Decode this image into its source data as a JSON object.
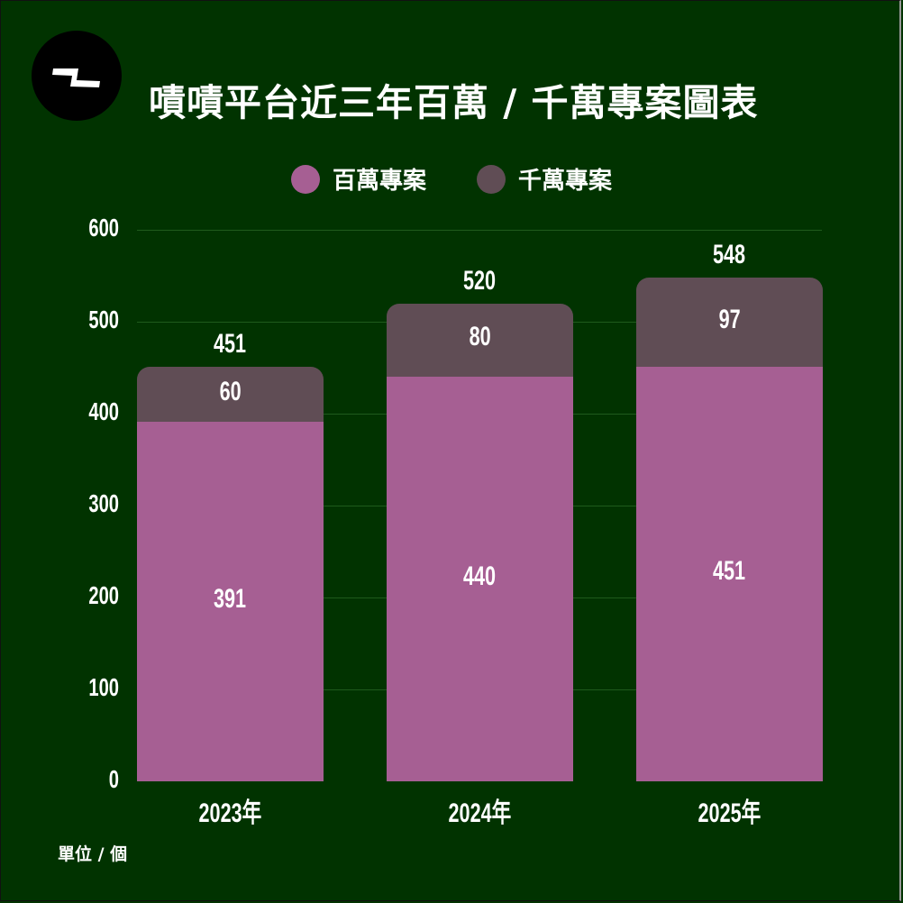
{
  "title": "嘖嘖平台近三年百萬 / 千萬專案圖表",
  "logo": {
    "icon": "zeczec-logo-icon"
  },
  "legend": [
    {
      "label": "百萬專案",
      "color": "#a65f93"
    },
    {
      "label": "千萬專案",
      "color": "#604d55"
    }
  ],
  "unit_label": "單位 / 個",
  "colors": {
    "background": "#013300",
    "million": "#a65f93",
    "ten_million": "#604d55",
    "gridline": "#1f5a1c",
    "text": "#ffffff"
  },
  "chart_data": {
    "type": "bar",
    "stacked": true,
    "title": "嘖嘖平台近三年百萬 / 千萬專案圖表",
    "categories": [
      "2023年",
      "2024年",
      "2025年"
    ],
    "series": [
      {
        "name": "百萬專案",
        "values": [
          391,
          440,
          451
        ],
        "color": "#a65f93"
      },
      {
        "name": "千萬專案",
        "values": [
          60,
          80,
          97
        ],
        "color": "#604d55"
      }
    ],
    "totals": [
      451,
      520,
      548
    ],
    "xlabel": "",
    "ylabel": "",
    "unit": "單位 / 個",
    "ylim": [
      0,
      600
    ],
    "yticks": [
      0,
      100,
      200,
      300,
      400,
      500,
      600
    ],
    "grid": true,
    "legend_position": "top"
  }
}
